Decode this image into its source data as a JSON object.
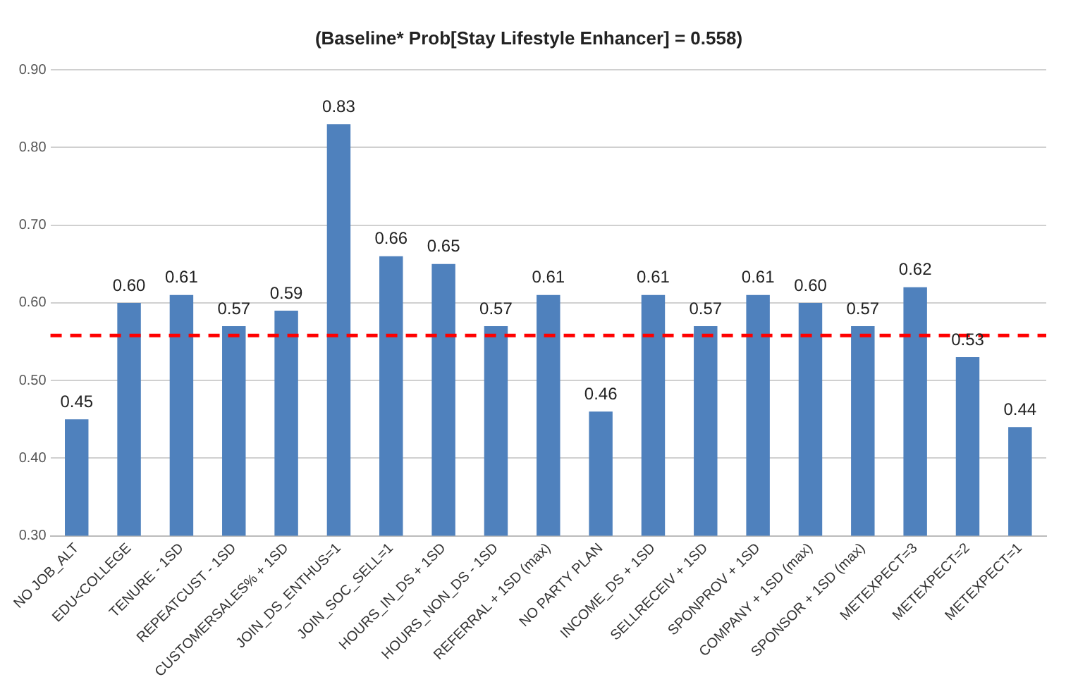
{
  "chart_data": {
    "type": "bar",
    "title": "(Baseline* Prob[Stay Lifestyle Enhancer] = 0.558)",
    "categories": [
      "NO JOB_ALT",
      "EDU<COLLEGE",
      "TENURE - 1SD",
      "REPEATCUST - 1SD",
      "CUSTOMERSALES% + 1SD",
      "JOIN_DS_ENTHUS=1",
      "JOIN_SOC_SELL=1",
      "HOURS_IN_DS + 1SD",
      "HOURS_NON_DS - 1SD",
      "REFERRAL + 1SD (max)",
      "NO PARTY PLAN",
      "INCOME_DS + 1SD",
      "SELLRECEIV + 1SD",
      "SPONPROV + 1SD",
      "COMPANY + 1SD (max)",
      "SPONSOR + 1SD (max)",
      "METEXPECT=3",
      "METEXPECT=2",
      "METEXPECT=1"
    ],
    "values": [
      0.45,
      0.6,
      0.61,
      0.57,
      0.59,
      0.83,
      0.66,
      0.65,
      0.57,
      0.61,
      0.46,
      0.61,
      0.57,
      0.61,
      0.6,
      0.57,
      0.62,
      0.53,
      0.44
    ],
    "value_labels": [
      "0.45",
      "0.60",
      "0.61",
      "0.57",
      "0.59",
      "0.83",
      "0.66",
      "0.65",
      "0.57",
      "0.61",
      "0.46",
      "0.61",
      "0.57",
      "0.61",
      "0.60",
      "0.57",
      "0.62",
      "0.53",
      "0.44"
    ],
    "color": "#4f81bd",
    "ylim": [
      0.3,
      0.9
    ],
    "yticks": [
      {
        "value": 0.3,
        "label": "0.30"
      },
      {
        "value": 0.4,
        "label": "0.40"
      },
      {
        "value": 0.5,
        "label": "0.50"
      },
      {
        "value": 0.6,
        "label": "0.60"
      },
      {
        "value": 0.7,
        "label": "0.70"
      },
      {
        "value": 0.8,
        "label": "0.80"
      },
      {
        "value": 0.9,
        "label": "0.90"
      }
    ],
    "grid": "y",
    "legend": false,
    "ref_lines": [
      {
        "axis": "y",
        "value": 0.558,
        "color": "#ff0000",
        "line_style": "dashed"
      }
    ]
  }
}
